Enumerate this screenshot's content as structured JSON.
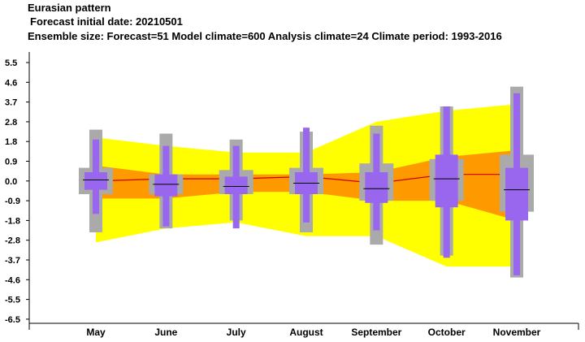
{
  "chart_data": {
    "type": "box",
    "title": "Eurasian pattern",
    "subtitle_lines": [
      "Forecast initial date: 20210501",
      "Ensemble size: Forecast=51 Model climate=600 Analysis climate=24   Climate period: 1993-2016"
    ],
    "xlabel": "",
    "ylabel": "",
    "categories": [
      "May",
      "June",
      "July",
      "August",
      "September",
      "October",
      "November"
    ],
    "yticks": [
      5.5,
      4.6,
      3.7,
      2.8,
      1.8,
      0.9,
      0.0,
      -0.9,
      -1.8,
      -2.8,
      -3.7,
      -4.6,
      -5.5,
      -6.5
    ],
    "ylim": [
      -6.5,
      6.0
    ],
    "grid": false,
    "colors": {
      "outer_band": "#ffff00",
      "inner_band": "#ff9900",
      "climate_box": "#aaaaaa",
      "forecast_box": "#9966ee",
      "median_line": "#cc0000",
      "median_tick": "#000000"
    },
    "model_climate": {
      "band_outer_low": [
        -2.9,
        -2.2,
        -1.9,
        -2.6,
        -2.6,
        -4.0,
        -4.0
      ],
      "band_outer_high": [
        2.0,
        1.6,
        1.3,
        1.3,
        2.8,
        3.3,
        3.6
      ],
      "band_inner_low": [
        -0.8,
        -0.8,
        -0.5,
        -0.5,
        -0.9,
        -0.9,
        -1.8
      ],
      "band_inner_high": [
        0.7,
        0.3,
        0.3,
        0.3,
        0.4,
        1.1,
        1.4
      ],
      "median": [
        0.0,
        0.1,
        0.1,
        0.2,
        -0.1,
        0.3,
        0.3
      ]
    },
    "climate_boxes": [
      {
        "min": -2.4,
        "q1": -0.6,
        "median": 0.05,
        "q3": 0.6,
        "max": 2.4
      },
      {
        "min": -2.2,
        "q1": -0.6,
        "median": -0.1,
        "q3": 0.3,
        "max": 2.2
      },
      {
        "min": -1.8,
        "q1": -0.6,
        "median": -0.2,
        "q3": 0.5,
        "max": 1.9
      },
      {
        "min": -2.4,
        "q1": -0.6,
        "median": -0.1,
        "q3": 0.6,
        "max": 2.3
      },
      {
        "min": -3.0,
        "q1": -0.9,
        "median": -0.3,
        "q3": 0.8,
        "max": 2.6
      },
      {
        "min": -3.5,
        "q1": -0.9,
        "median": 0.1,
        "q3": 1.0,
        "max": 3.5
      },
      {
        "min": -4.5,
        "q1": -1.4,
        "median": 0.1,
        "q3": 1.2,
        "max": 4.4
      }
    ],
    "forecast_boxes": [
      {
        "min": -1.5,
        "q1": -0.4,
        "median": 0.05,
        "q3": 0.4,
        "max": 1.9
      },
      {
        "min": -2.1,
        "q1": -0.7,
        "median": -0.15,
        "q3": 0.3,
        "max": 1.6
      },
      {
        "min": -2.2,
        "q1": -0.6,
        "median": -0.25,
        "q3": 0.2,
        "max": 1.6
      },
      {
        "min": -1.9,
        "q1": -0.6,
        "median": -0.1,
        "q3": 0.4,
        "max": 2.5
      },
      {
        "min": -2.3,
        "q1": -1.0,
        "median": -0.35,
        "q3": 0.4,
        "max": 2.2
      },
      {
        "min": -3.6,
        "q1": -1.2,
        "median": 0.1,
        "q3": 1.2,
        "max": 3.5
      },
      {
        "min": -4.4,
        "q1": -1.8,
        "median": -0.4,
        "q3": 0.6,
        "max": 4.1
      }
    ]
  }
}
